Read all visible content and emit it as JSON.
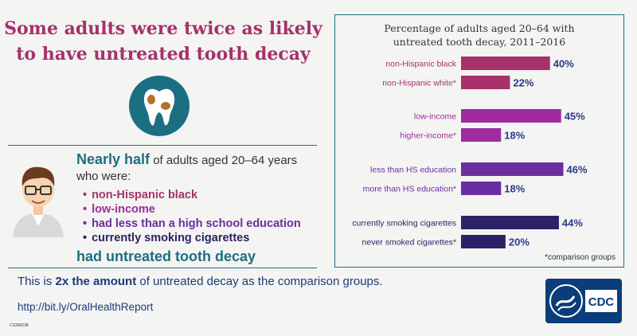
{
  "headline": {
    "line1": "Some adults were twice as likely",
    "line2": "to have untreated tooth decay"
  },
  "icons": {
    "tooth": "tooth-icon",
    "avatar": "person-avatar-icon",
    "cdc_logo": "cdc-logo-icon"
  },
  "summary": {
    "lead_bold": "Nearly half",
    "lead_rest": " of adults aged 20–64 years",
    "line2": "who were:",
    "items": [
      {
        "text": "non-Hispanic black",
        "color": "#a6316b"
      },
      {
        "text": "low-income",
        "color": "#9e2ba0"
      },
      {
        "text": "had less than a high school education",
        "color": "#6b2ea0"
      },
      {
        "text": "currently smoking cigarettes",
        "color": "#2a2366"
      }
    ],
    "outcome": "had untreated tooth decay"
  },
  "comparison": {
    "prefix": "This is ",
    "bold": "2x the amount",
    "suffix": " of untreated decay as the comparison groups."
  },
  "link": "http://bit.ly/OralHealthReport",
  "doc_code": "CS306238",
  "logo_text": "CDC",
  "chart_data": {
    "type": "bar",
    "orientation": "horizontal",
    "title_line1": "Percentage of adults aged 20–64 with",
    "title_line2": "untreated tooth decay, 2011–2016",
    "xlim": [
      0,
      50
    ],
    "value_suffix": "%",
    "footnote": "*comparison groups",
    "groups": [
      {
        "color": "#a6316b",
        "bars": [
          {
            "label": "non-Hispanic black",
            "value": 40
          },
          {
            "label": "non-Hispanic white*",
            "value": 22
          }
        ]
      },
      {
        "color": "#9e2ba0",
        "bars": [
          {
            "label": "low-income",
            "value": 45
          },
          {
            "label": "higher-income*",
            "value": 18
          }
        ]
      },
      {
        "color": "#6b2ea0",
        "bars": [
          {
            "label": "less than HS education",
            "value": 46
          },
          {
            "label": "more than HS education*",
            "value": 18
          }
        ]
      },
      {
        "color": "#2a2366",
        "bars": [
          {
            "label": "currently smoking cigarettes",
            "value": 44
          },
          {
            "label": "never smoked cigarettes*",
            "value": 20
          }
        ]
      }
    ],
    "value_label_color": "#2a3a8a"
  },
  "colors": {
    "teal": "#1b6f82",
    "magenta": "#a6316b",
    "navy": "#0b3d7a"
  }
}
